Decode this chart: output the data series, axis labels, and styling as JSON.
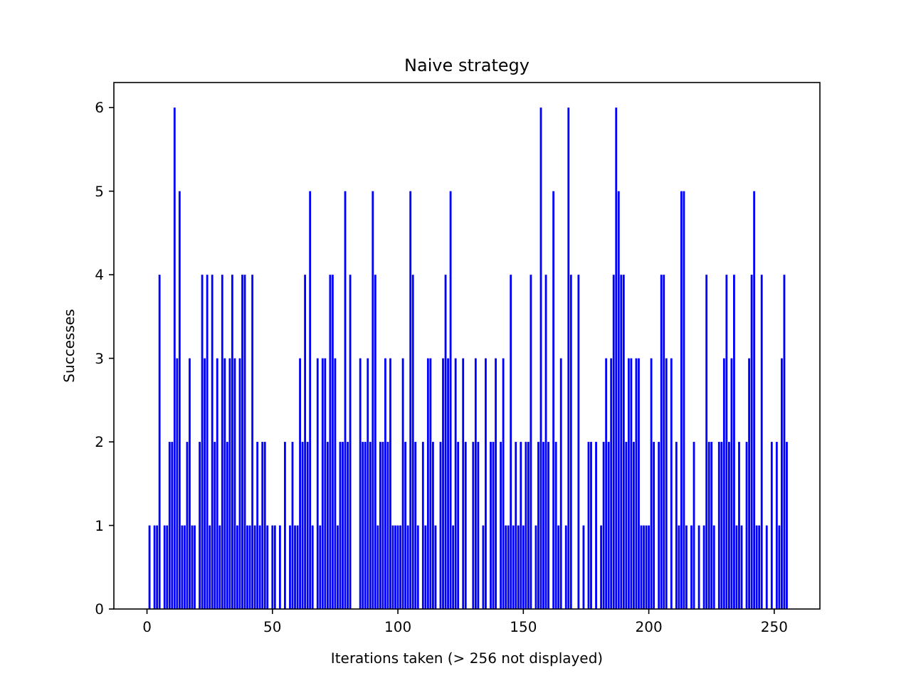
{
  "chart_data": {
    "type": "bar",
    "title": "Naive strategy",
    "xlabel": "Iterations taken (> 256 not displayed)",
    "ylabel": "Successes",
    "x": [
      0,
      1,
      2,
      3,
      4,
      5,
      6,
      7,
      8,
      9,
      10,
      11,
      12,
      13,
      14,
      15,
      16,
      17,
      18,
      19,
      20,
      21,
      22,
      23,
      24,
      25,
      26,
      27,
      28,
      29,
      30,
      31,
      32,
      33,
      34,
      35,
      36,
      37,
      38,
      39,
      40,
      41,
      42,
      43,
      44,
      45,
      46,
      47,
      48,
      49,
      50,
      51,
      52,
      53,
      54,
      55,
      56,
      57,
      58,
      59,
      60,
      61,
      62,
      63,
      64,
      65,
      66,
      67,
      68,
      69,
      70,
      71,
      72,
      73,
      74,
      75,
      76,
      77,
      78,
      79,
      80,
      81,
      82,
      83,
      84,
      85,
      86,
      87,
      88,
      89,
      90,
      91,
      92,
      93,
      94,
      95,
      96,
      97,
      98,
      99,
      100,
      101,
      102,
      103,
      104,
      105,
      106,
      107,
      108,
      109,
      110,
      111,
      112,
      113,
      114,
      115,
      116,
      117,
      118,
      119,
      120,
      121,
      122,
      123,
      124,
      125,
      126,
      127,
      128,
      129,
      130,
      131,
      132,
      133,
      134,
      135,
      136,
      137,
      138,
      139,
      140,
      141,
      142,
      143,
      144,
      145,
      146,
      147,
      148,
      149,
      150,
      151,
      152,
      153,
      154,
      155,
      156,
      157,
      158,
      159,
      160,
      161,
      162,
      163,
      164,
      165,
      166,
      167,
      168,
      169,
      170,
      171,
      172,
      173,
      174,
      175,
      176,
      177,
      178,
      179,
      180,
      181,
      182,
      183,
      184,
      185,
      186,
      187,
      188,
      189,
      190,
      191,
      192,
      193,
      194,
      195,
      196,
      197,
      198,
      199,
      200,
      201,
      202,
      203,
      204,
      205,
      206,
      207,
      208,
      209,
      210,
      211,
      212,
      213,
      214,
      215,
      216,
      217,
      218,
      219,
      220,
      221,
      222,
      223,
      224,
      225,
      226,
      227,
      228,
      229,
      230,
      231,
      232,
      233,
      234,
      235,
      236,
      237,
      238,
      239,
      240,
      241,
      242,
      243,
      244,
      245,
      246,
      247,
      248,
      249,
      250,
      251,
      252,
      253,
      254,
      255
    ],
    "values": [
      0,
      1,
      0,
      1,
      1,
      4,
      0,
      1,
      1,
      2,
      2,
      6,
      3,
      5,
      1,
      1,
      2,
      3,
      1,
      1,
      0,
      2,
      4,
      3,
      4,
      1,
      4,
      2,
      3,
      1,
      4,
      3,
      2,
      3,
      4,
      3,
      1,
      3,
      4,
      4,
      1,
      1,
      4,
      1,
      2,
      1,
      2,
      2,
      1,
      0,
      1,
      1,
      0,
      1,
      0,
      2,
      0,
      1,
      2,
      1,
      1,
      3,
      2,
      4,
      2,
      5,
      1,
      0,
      3,
      1,
      3,
      3,
      2,
      4,
      4,
      3,
      1,
      2,
      2,
      5,
      2,
      4,
      0,
      0,
      0,
      3,
      2,
      2,
      3,
      2,
      5,
      4,
      1,
      2,
      2,
      3,
      2,
      3,
      1,
      1,
      1,
      1,
      3,
      2,
      1,
      5,
      4,
      2,
      1,
      0,
      2,
      1,
      3,
      3,
      2,
      1,
      0,
      2,
      3,
      4,
      3,
      5,
      1,
      3,
      2,
      0,
      3,
      2,
      0,
      0,
      2,
      3,
      2,
      0,
      1,
      3,
      0,
      2,
      2,
      3,
      0,
      2,
      3,
      1,
      1,
      4,
      1,
      2,
      1,
      2,
      1,
      2,
      2,
      4,
      0,
      1,
      2,
      6,
      2,
      4,
      2,
      0,
      5,
      2,
      1,
      3,
      0,
      1,
      6,
      4,
      0,
      0,
      4,
      0,
      1,
      0,
      2,
      2,
      0,
      2,
      0,
      1,
      2,
      3,
      2,
      3,
      4,
      6,
      5,
      4,
      4,
      2,
      3,
      3,
      2,
      3,
      3,
      1,
      1,
      1,
      1,
      3,
      2,
      0,
      2,
      4,
      4,
      3,
      0,
      3,
      0,
      2,
      1,
      5,
      5,
      1,
      0,
      1,
      2,
      0,
      1,
      0,
      1,
      4,
      2,
      2,
      1,
      0,
      2,
      2,
      3,
      4,
      2,
      3,
      4,
      1,
      2,
      1,
      0,
      2,
      3,
      4,
      5,
      1,
      1,
      4,
      0,
      1,
      0,
      2,
      0,
      2,
      1,
      3,
      4,
      2
    ],
    "color": "#0000ff",
    "xlim": [
      -13.2,
      268.2
    ],
    "xticks": [
      0,
      50,
      100,
      150,
      200,
      250
    ],
    "ylim": [
      0,
      6.3
    ],
    "yticks": [
      0,
      1,
      2,
      3,
      4,
      5,
      6
    ]
  }
}
